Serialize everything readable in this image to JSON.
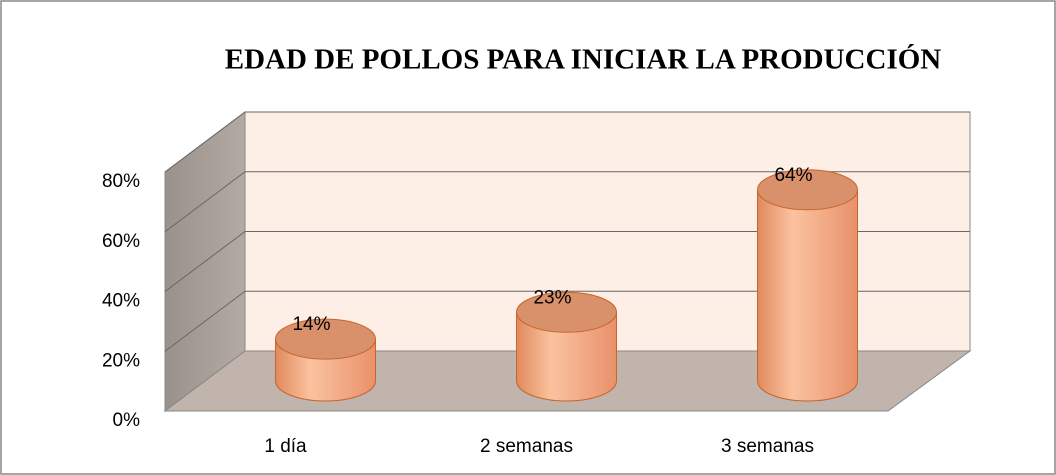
{
  "chart_data": {
    "type": "bar",
    "title": "EDAD DE POLLOS PARA INICIAR LA PRODUCCIÓN",
    "categories": [
      "1 día",
      "2 semanas",
      "3 semanas"
    ],
    "values": [
      14,
      23,
      64
    ],
    "value_labels": [
      "14%",
      "23%",
      "64%"
    ],
    "color": "#f4a77c",
    "ylim": [
      0,
      80
    ],
    "yticks": [
      {
        "value": 0,
        "label": "0%"
      },
      {
        "value": 20,
        "label": "20%"
      },
      {
        "value": 40,
        "label": "40%"
      },
      {
        "value": 60,
        "label": "60%"
      },
      {
        "value": 80,
        "label": "80%"
      }
    ],
    "grid": true
  }
}
